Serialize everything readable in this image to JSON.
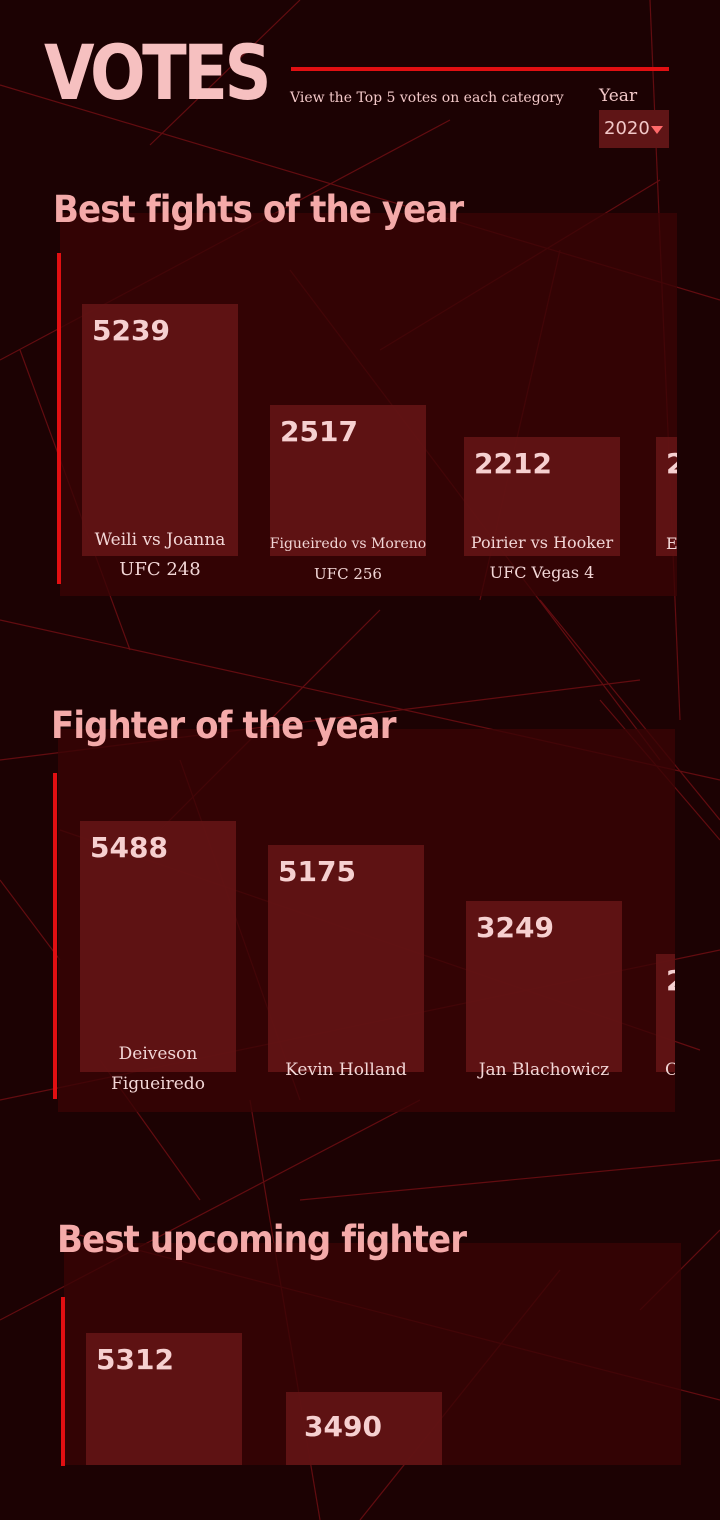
{
  "header": {
    "title": "VOTES",
    "subtitle": "View the Top 5 votes on each category",
    "year_label": "Year",
    "year_value": "2020"
  },
  "colors": {
    "background": "#1c0203",
    "panel": "#3a0405",
    "bar": "#641416",
    "accent": "#e10f12",
    "title": "#f6c0c0"
  },
  "icons": {
    "year_dropdown": "caret-down-icon"
  },
  "sections": [
    {
      "title": "Best fights of the year",
      "items": [
        {
          "value": "5239",
          "name": "Weili vs Joanna",
          "sub": "UFC 248"
        },
        {
          "value": "2517",
          "name": "Figueiredo vs Moreno",
          "sub": "UFC 256"
        },
        {
          "value": "2212",
          "name": "Poirier vs Hooker",
          "sub": "UFC Vegas 4"
        },
        {
          "value": "2",
          "name": "E",
          "sub": ""
        }
      ]
    },
    {
      "title": "Fighter of the year",
      "items": [
        {
          "value": "5488",
          "name": "Deiveson",
          "sub": "Figueiredo"
        },
        {
          "value": "5175",
          "name": "Kevin Holland",
          "sub": ""
        },
        {
          "value": "3249",
          "name": "Jan Blachowicz",
          "sub": ""
        },
        {
          "value": "2",
          "name": "C",
          "sub": ""
        }
      ]
    },
    {
      "title": "Best upcoming fighter",
      "items": [
        {
          "value": "5312",
          "name": "",
          "sub": ""
        },
        {
          "value": "3490",
          "name": "",
          "sub": ""
        }
      ]
    }
  ]
}
